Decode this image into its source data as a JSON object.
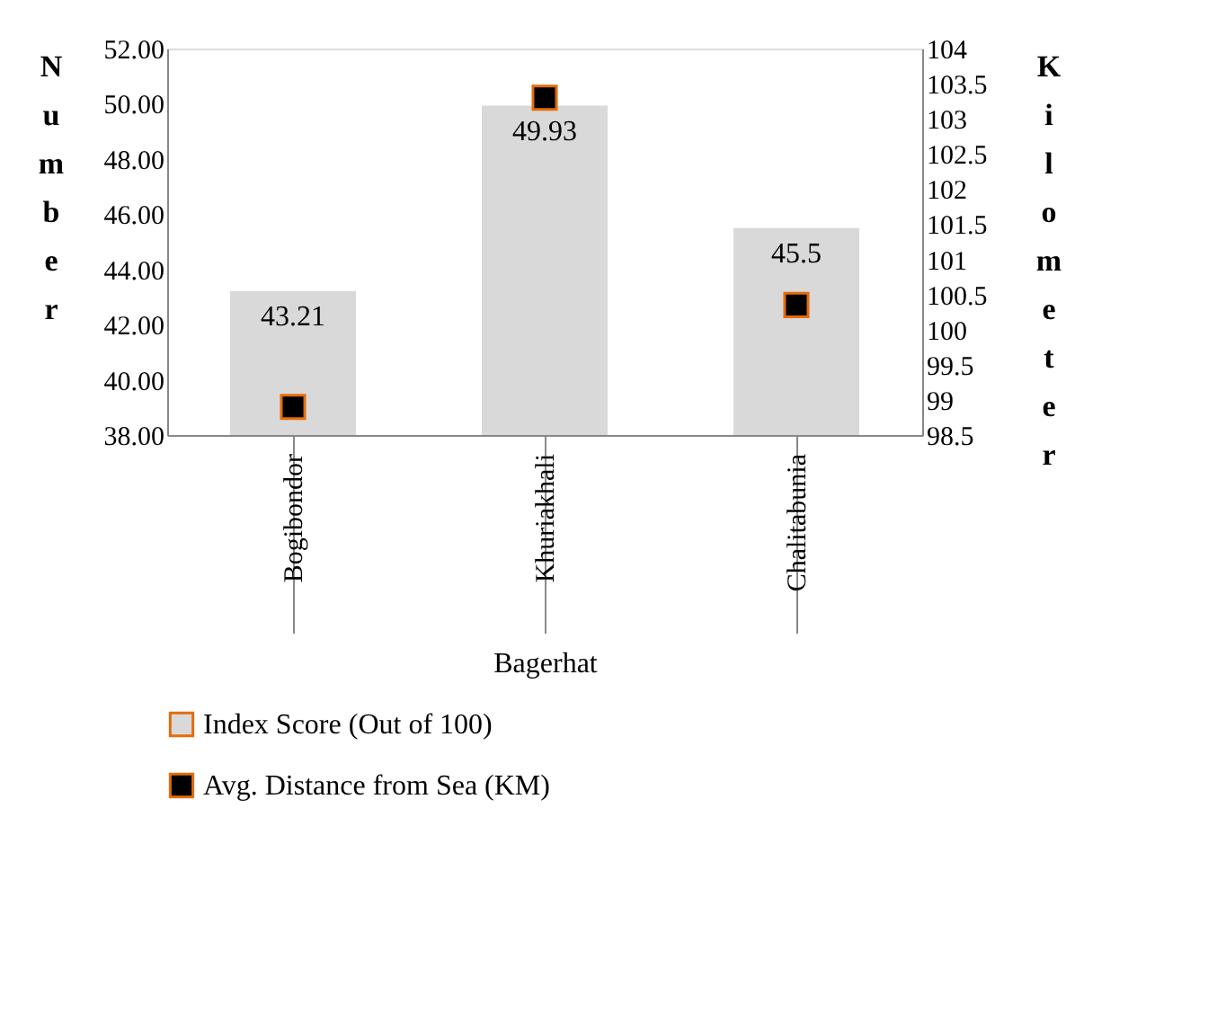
{
  "chart_data": {
    "type": "bar",
    "xlabel": "Bagerhat",
    "ylabel": "Number",
    "y2label": "Kilometer",
    "categories": [
      "Bogibondor",
      "Khuriakhali",
      "Chalitabunia"
    ],
    "series": [
      {
        "name": "Index Score (Out of 100)",
        "color": "#d9d9d9",
        "values": [
          43.21,
          49.93,
          45.5
        ],
        "data_labels": true
      },
      {
        "name": "Avg. Distance from Sea (KM)",
        "type": "scatter",
        "axis": "y2",
        "marker": "square",
        "color": "#000000",
        "values": [
          98.9,
          103.3,
          100.35
        ]
      }
    ],
    "ylim": [
      38,
      52
    ],
    "yticks": [
      {
        "value": 38,
        "label": "38.00"
      },
      {
        "value": 40,
        "label": "40.00"
      },
      {
        "value": 42,
        "label": "42.00"
      },
      {
        "value": 44,
        "label": "44.00"
      },
      {
        "value": 46,
        "label": "46.00"
      },
      {
        "value": 48,
        "label": "48.00"
      },
      {
        "value": 50,
        "label": "50.00"
      },
      {
        "value": 52,
        "label": "52.00"
      }
    ],
    "y2lim": [
      98.5,
      104
    ],
    "y2ticks": [
      98.5,
      99,
      99.5,
      100,
      100.5,
      101,
      101.5,
      102,
      102.5,
      103,
      103.5,
      104
    ],
    "grid": false,
    "legend": "bottom"
  }
}
